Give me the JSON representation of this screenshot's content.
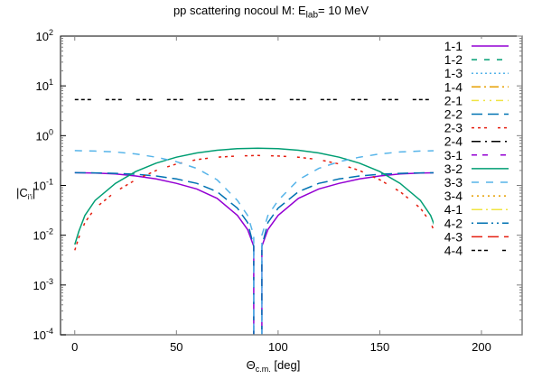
{
  "chart_data": {
    "type": "line",
    "title": "pp scattering nocoul M: E_lab=   10 MeV",
    "title_parts": {
      "prefix": "pp scattering nocoul M: E",
      "sub": "lab",
      "suffix": "=   10 MeV"
    },
    "xlabel": "Θc.m. [deg]",
    "xlabel_parts": {
      "main": "Θ",
      "sub": "c.m.",
      "suffix": " [deg]"
    },
    "ylabel": "|C_i'i|",
    "ylabel_parts": {
      "main": "|C",
      "sub": "i'i",
      "suffix": "|"
    },
    "xlim": [
      -7,
      220
    ],
    "ylim": [
      0.0001,
      100
    ],
    "yscale": "log",
    "x_ticks": [
      0,
      50,
      100,
      150,
      200
    ],
    "y_ticks": [
      {
        "value": 100,
        "label": "10",
        "exp": "2"
      },
      {
        "value": 10,
        "label": "10",
        "exp": "1"
      },
      {
        "value": 1,
        "label": "10",
        "exp": "0"
      },
      {
        "value": 0.1,
        "label": "10",
        "exp": "-1"
      },
      {
        "value": 0.01,
        "label": "10",
        "exp": "-2"
      },
      {
        "value": 0.001,
        "label": "10",
        "exp": "-3"
      },
      {
        "value": 0.0001,
        "label": "10",
        "exp": "-4"
      }
    ],
    "grid": false,
    "legend_position": "top-right inside",
    "series": [
      {
        "name": "1-1",
        "color": "#9400d3",
        "dash": "",
        "x": [
          0,
          10,
          20,
          30,
          40,
          50,
          60,
          70,
          80,
          85,
          88,
          92,
          95,
          100,
          110,
          120,
          130,
          140,
          150,
          160,
          170,
          180
        ],
        "values": [
          0.18,
          0.178,
          0.17,
          0.155,
          0.135,
          0.11,
          0.085,
          0.055,
          0.025,
          0.013,
          0.006,
          0.006,
          0.013,
          0.025,
          0.055,
          0.085,
          0.11,
          0.135,
          0.155,
          0.17,
          0.178,
          0.18
        ]
      },
      {
        "name": "1-2",
        "color": "#009e73",
        "dash": "6,8",
        "x": [],
        "values": []
      },
      {
        "name": "1-3",
        "color": "#56b4e9",
        "dash": "2,3",
        "x": [],
        "values": []
      },
      {
        "name": "1-4",
        "color": "#e69f00",
        "dash": "10,4,2,4",
        "x": [],
        "values": []
      },
      {
        "name": "2-1",
        "color": "#f0e442",
        "dash": "8,5,2,5,2,5",
        "x": [],
        "values": []
      },
      {
        "name": "2-2",
        "color": "#0072b2",
        "dash": "12,6",
        "x": [
          0,
          10,
          20,
          30,
          40,
          50,
          60,
          70,
          80,
          85,
          88,
          92,
          95,
          100,
          110,
          120,
          130,
          140,
          150,
          160,
          170,
          180
        ],
        "values": [
          0.18,
          0.179,
          0.175,
          0.168,
          0.155,
          0.135,
          0.11,
          0.075,
          0.035,
          0.018,
          0.006,
          0.006,
          0.018,
          0.035,
          0.075,
          0.11,
          0.135,
          0.155,
          0.168,
          0.175,
          0.179,
          0.18
        ]
      },
      {
        "name": "2-3",
        "color": "#e51e10",
        "dash": "3,4,3,4,3,12",
        "x": [
          0,
          2,
          5,
          10,
          20,
          30,
          40,
          50,
          60,
          70,
          80,
          90,
          100,
          110,
          120,
          130,
          140,
          150,
          160,
          170,
          175,
          178,
          180
        ],
        "values": [
          0.005,
          0.009,
          0.018,
          0.035,
          0.075,
          0.13,
          0.2,
          0.27,
          0.33,
          0.37,
          0.39,
          0.4,
          0.39,
          0.37,
          0.33,
          0.27,
          0.2,
          0.13,
          0.075,
          0.035,
          0.018,
          0.009,
          0.005
        ]
      },
      {
        "name": "2-4",
        "color": "#000000",
        "dash": "10,5,2,5",
        "x": [],
        "values": []
      },
      {
        "name": "3-1",
        "color": "#9400d3",
        "dash": "6,6,6,14",
        "x": [],
        "values": []
      },
      {
        "name": "3-2",
        "color": "#009e73",
        "dash": "",
        "x": [
          0,
          2,
          5,
          10,
          20,
          30,
          40,
          50,
          60,
          70,
          80,
          90,
          100,
          110,
          120,
          130,
          140,
          150,
          160,
          170,
          175,
          178,
          180
        ],
        "values": [
          0.0065,
          0.012,
          0.025,
          0.05,
          0.11,
          0.19,
          0.28,
          0.37,
          0.45,
          0.51,
          0.55,
          0.56,
          0.55,
          0.51,
          0.45,
          0.37,
          0.28,
          0.19,
          0.11,
          0.05,
          0.025,
          0.012,
          0.0065
        ]
      },
      {
        "name": "3-3",
        "color": "#56b4e9",
        "dash": "8,8",
        "x": [
          0,
          10,
          20,
          30,
          40,
          50,
          60,
          70,
          80,
          85,
          88,
          92,
          95,
          100,
          110,
          120,
          130,
          140,
          150,
          160,
          170,
          180
        ],
        "values": [
          0.5,
          0.49,
          0.47,
          0.43,
          0.37,
          0.3,
          0.22,
          0.13,
          0.05,
          0.025,
          0.01,
          0.01,
          0.025,
          0.05,
          0.13,
          0.22,
          0.3,
          0.37,
          0.43,
          0.47,
          0.49,
          0.5
        ]
      },
      {
        "name": "3-4",
        "color": "#e69f00",
        "dash": "2,4",
        "x": [],
        "values": []
      },
      {
        "name": "4-1",
        "color": "#f0e442",
        "dash": "12,4,2,4",
        "x": [],
        "values": []
      },
      {
        "name": "4-2",
        "color": "#0072b2",
        "dash": "2,4,12,4,2,4",
        "x": [],
        "values": []
      },
      {
        "name": "4-3",
        "color": "#e51e10",
        "dash": "12,6",
        "x": [],
        "values": []
      },
      {
        "name": "4-4",
        "color": "#000000",
        "dash": "4,3,4,3,4,16",
        "x": [
          0,
          180
        ],
        "values": [
          5.3,
          5.3
        ]
      }
    ]
  }
}
